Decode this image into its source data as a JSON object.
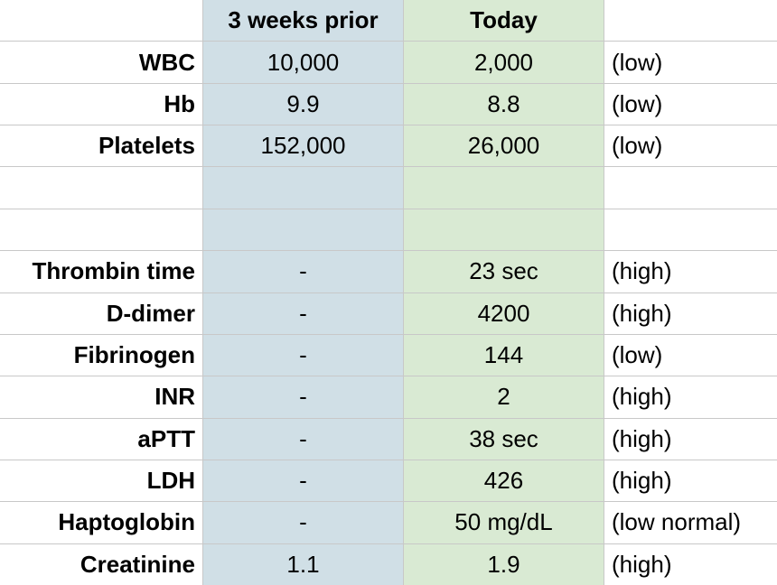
{
  "header": {
    "columns": [
      "3 weeks prior",
      "Today"
    ]
  },
  "blood_counts": [
    {
      "test": "WBC",
      "prior": "10,000",
      "today": "2,000",
      "flag": "(low)"
    },
    {
      "test": "Hb",
      "prior": "9.9",
      "today": "8.8",
      "flag": "(low)"
    },
    {
      "test": "Platelets",
      "prior": "152,000",
      "today": "26,000",
      "flag": "(low)"
    }
  ],
  "coagulation": [
    {
      "test": "Thrombin time",
      "prior": "-",
      "today": "23 sec",
      "flag": "(high)"
    },
    {
      "test": "D-dimer",
      "prior": "-",
      "today": "4200",
      "flag": "(high)"
    },
    {
      "test": "Fibrinogen",
      "prior": "-",
      "today": "144",
      "flag": "(low)"
    },
    {
      "test": "INR",
      "prior": "-",
      "today": "2",
      "flag": "(high)"
    },
    {
      "test": "aPTT",
      "prior": "-",
      "today": "38 sec",
      "flag": "(high)"
    },
    {
      "test": "LDH",
      "prior": "-",
      "today": "426",
      "flag": "(high)"
    },
    {
      "test": "Haptoglobin",
      "prior": "-",
      "today": "50 mg/dL",
      "flag": "(low normal)"
    },
    {
      "test": "Creatinine",
      "prior": "1.1",
      "today": "1.9",
      "flag": "(high)"
    }
  ]
}
